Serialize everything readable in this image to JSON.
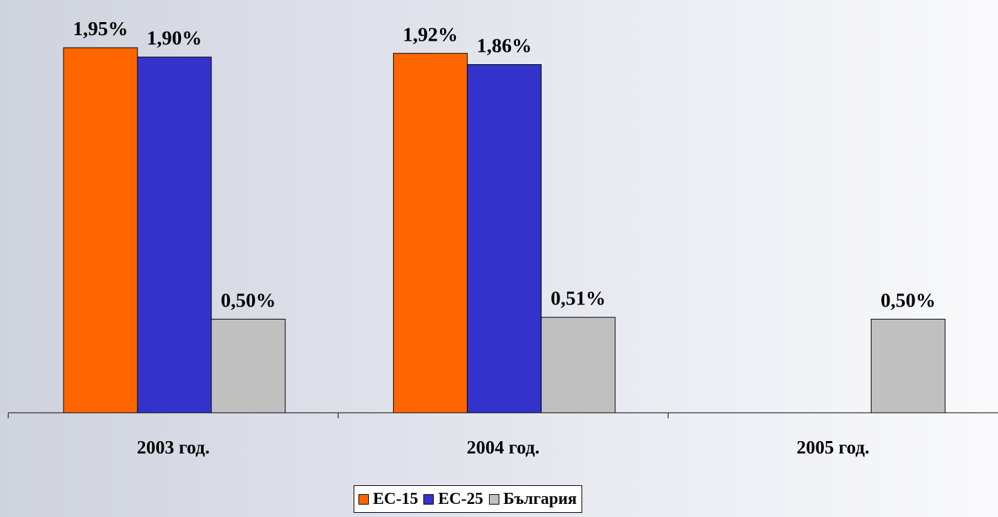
{
  "chart_data": {
    "type": "bar",
    "categories": [
      "2003 год.",
      "2004 год.",
      "2005 год."
    ],
    "series": [
      {
        "name": "ЕС-15",
        "color": "#FF6600",
        "values": [
          1.95,
          1.92,
          null
        ],
        "labels": [
          "1,95%",
          "1,92%",
          null
        ]
      },
      {
        "name": "ЕС-25",
        "color": "#3333CC",
        "values": [
          1.9,
          1.86,
          null
        ],
        "labels": [
          "1,90%",
          "1,86%",
          null
        ]
      },
      {
        "name": "България",
        "color": "#C0C0C0",
        "values": [
          0.5,
          0.51,
          0.5
        ],
        "labels": [
          "0,50%",
          "0,51%",
          "0,50%"
        ]
      }
    ],
    "title": "",
    "xlabel": "",
    "ylabel": "",
    "ylim": [
      0,
      2.05
    ],
    "grid": false,
    "legend_position": "bottom"
  }
}
